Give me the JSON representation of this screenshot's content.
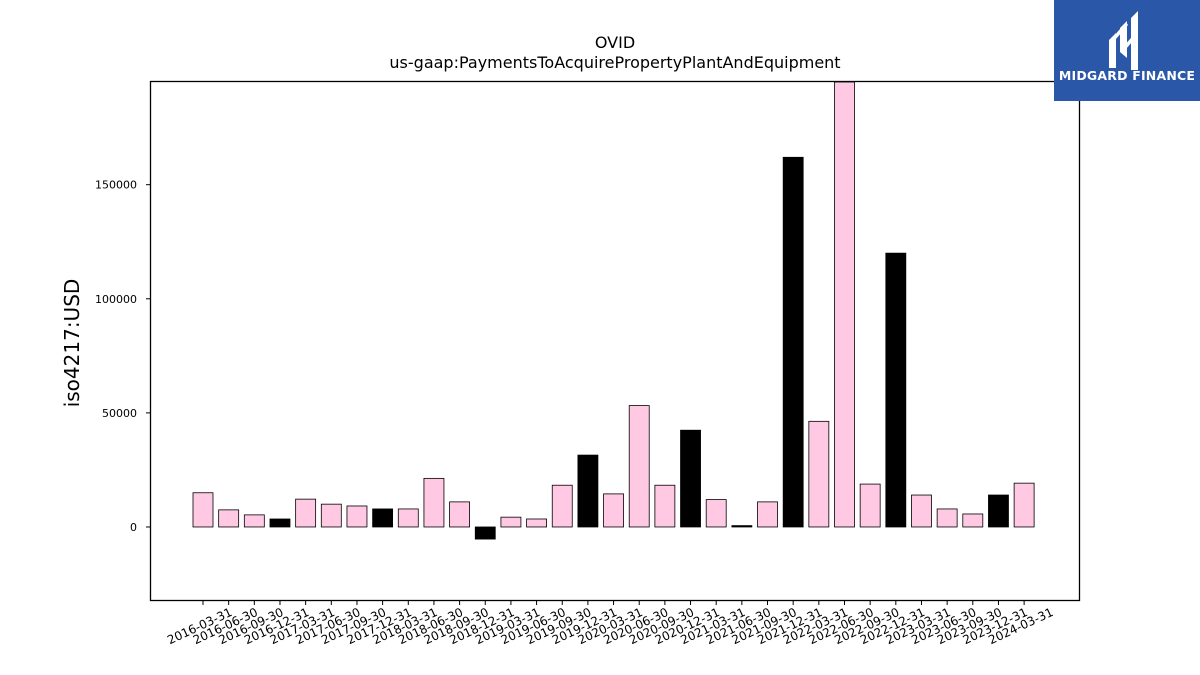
{
  "brand": {
    "name": "MIDGARD FINANCE",
    "bg_color": "#2a57a8",
    "icon": "midgard-logo-icon"
  },
  "chart_data": {
    "type": "bar",
    "title": "OVID",
    "subtitle": "us-gaap:PaymentsToAcquirePropertyPlantAndEquipment",
    "xlabel": "",
    "ylabel": "iso4217:USD",
    "ylim": [
      -32000,
      195000
    ],
    "yticks": [
      0,
      50000,
      100000,
      150000
    ],
    "grid": false,
    "colors": {
      "pink": "#ffc9e4",
      "black": "#000000"
    },
    "categories": [
      "2016-03-31",
      "2016-06-30",
      "2016-09-30",
      "2016-12-31",
      "2017-03-31",
      "2017-06-30",
      "2017-09-30",
      "2017-12-31",
      "2018-03-31",
      "2018-06-30",
      "2018-09-30",
      "2018-12-31",
      "2019-03-31",
      "2019-06-30",
      "2019-09-30",
      "2019-12-31",
      "2020-03-31",
      "2020-06-30",
      "2020-09-30",
      "2020-12-31",
      "2021-03-31",
      "2021-06-30",
      "2021-09-30",
      "2021-12-31",
      "2022-03-31",
      "2022-06-30",
      "2022-09-30",
      "2022-12-31",
      "2023-03-31",
      "2023-06-30",
      "2023-09-30",
      "2023-12-31",
      "2024-03-31"
    ],
    "values": [
      15000,
      7500,
      5300,
      3500,
      12200,
      10000,
      9200,
      7900,
      7900,
      21300,
      11000,
      -5300,
      4300,
      3500,
      18300,
      31500,
      14500,
      53200,
      18300,
      42400,
      12000,
      600,
      11000,
      162000,
      46300,
      195000,
      18800,
      120000,
      14000,
      7900,
      5700,
      14000,
      19200
    ],
    "bar_colors": [
      "pink",
      "pink",
      "pink",
      "black",
      "pink",
      "pink",
      "pink",
      "black",
      "pink",
      "pink",
      "pink",
      "black",
      "pink",
      "pink",
      "pink",
      "black",
      "pink",
      "pink",
      "pink",
      "black",
      "pink",
      "black",
      "pink",
      "black",
      "pink",
      "pink",
      "pink",
      "black",
      "pink",
      "pink",
      "pink",
      "black",
      "pink"
    ]
  }
}
